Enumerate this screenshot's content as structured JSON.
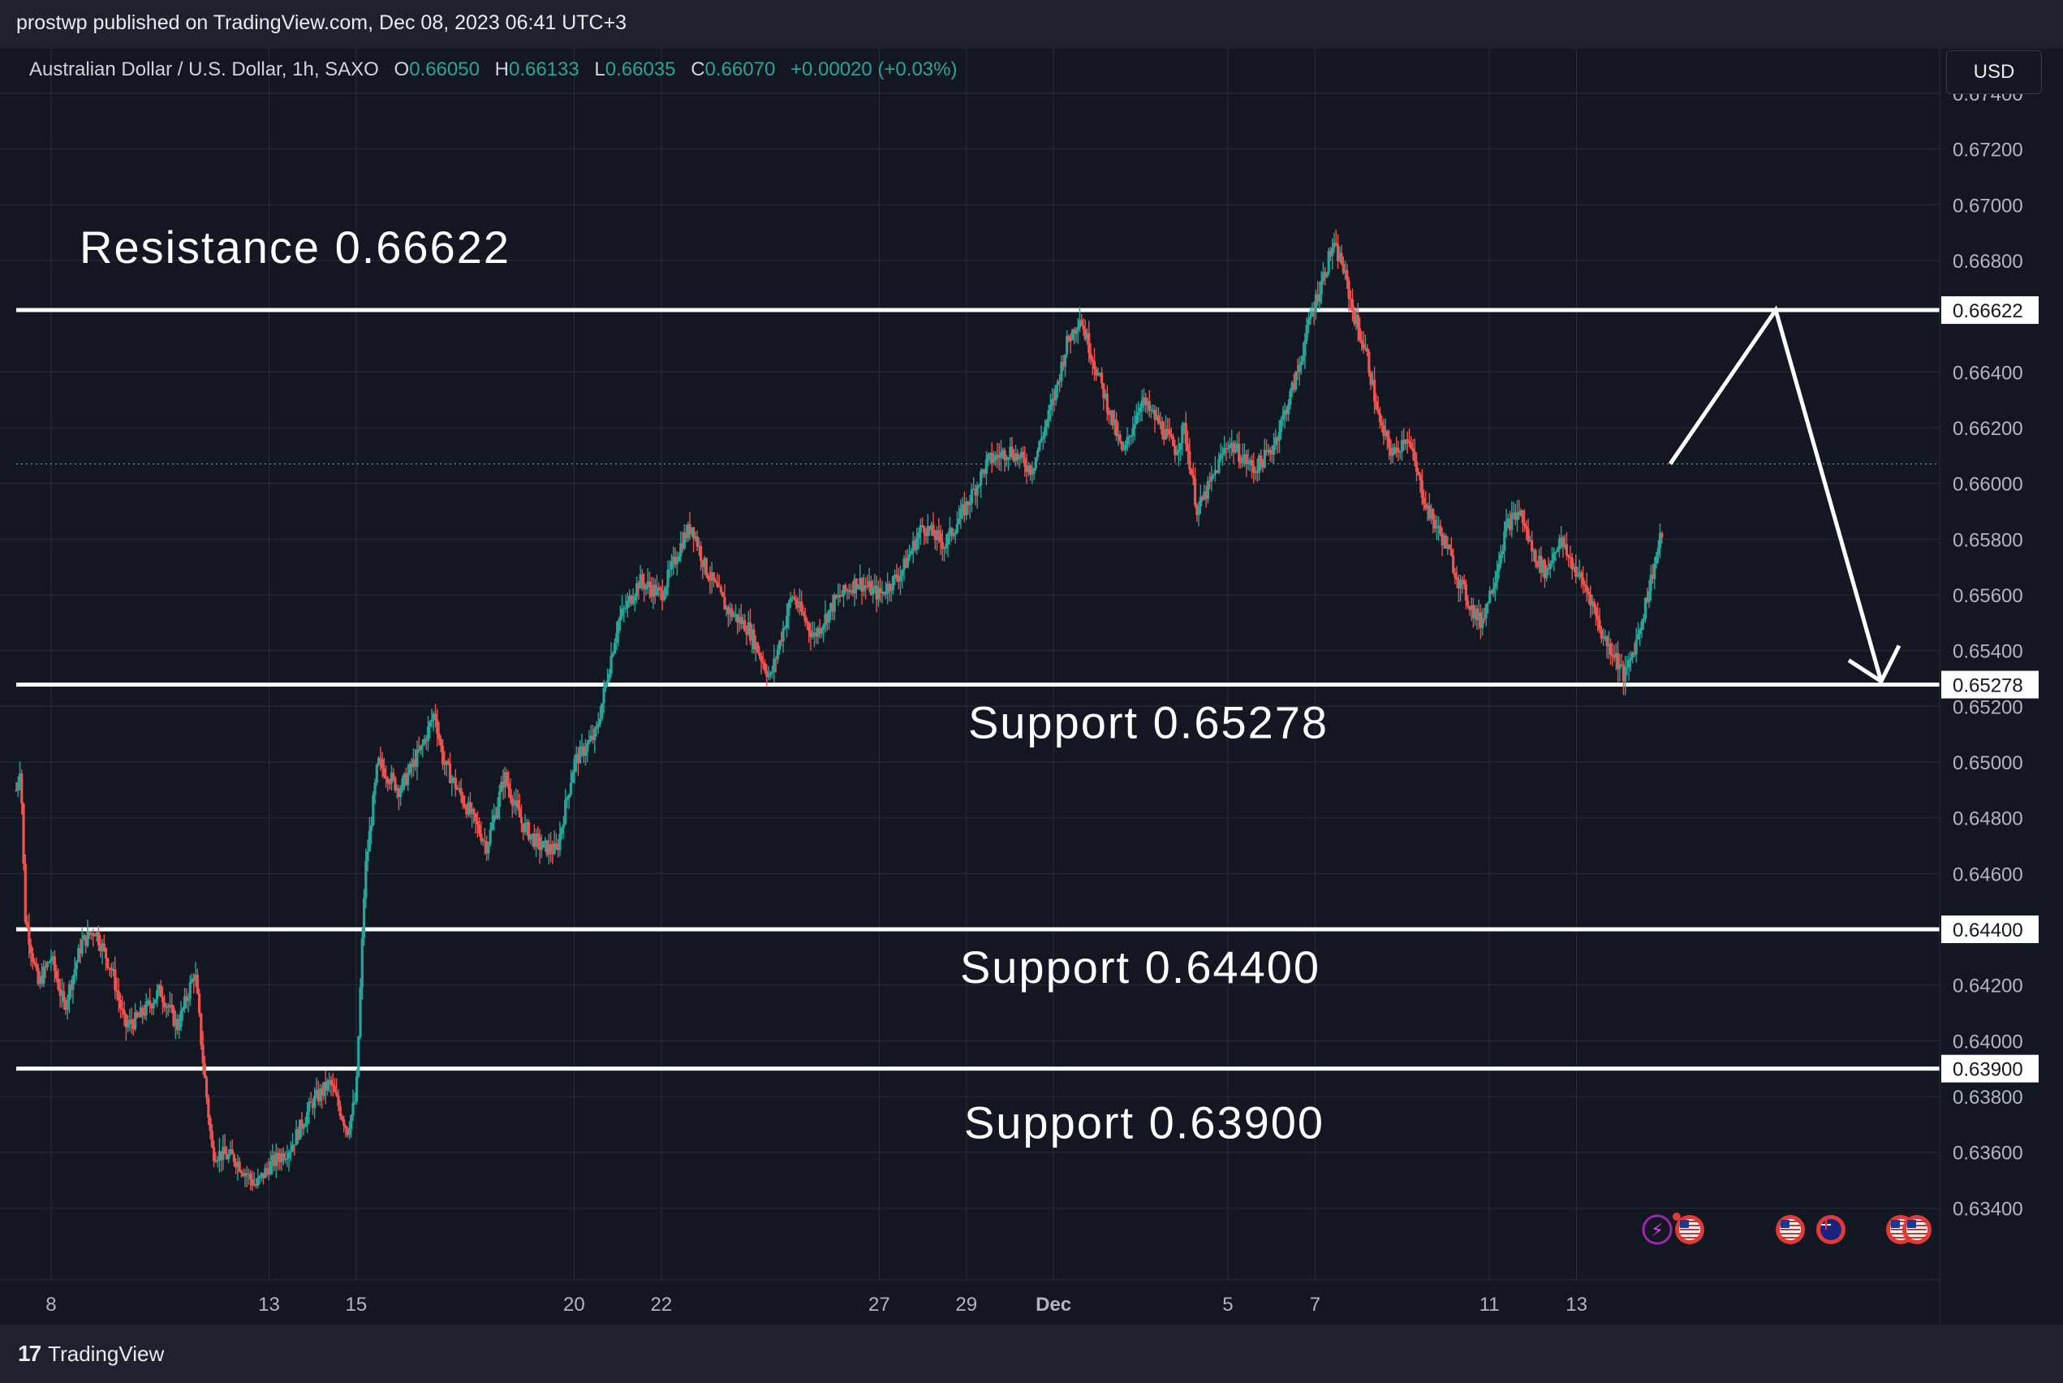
{
  "header": {
    "published": "prostwp published on TradingView.com, Dec 08, 2023 06:41 UTC+3"
  },
  "legend": {
    "symbol": "Australian Dollar / U.S. Dollar, 1h, SAXO",
    "open_label": "O",
    "open": "0.66050",
    "high_label": "H",
    "high": "0.66133",
    "low_label": "L",
    "low": "0.66035",
    "close_label": "C",
    "close": "0.66070",
    "change": "+0.00020 (+0.03%)"
  },
  "currency_button": "USD",
  "footer": {
    "brand": "TradingView",
    "logo": "17"
  },
  "chart_data": {
    "type": "candlestick",
    "symbol": "AUDUSD",
    "interval": "1h",
    "ylim": [
      0.632,
      0.6756
    ],
    "y_ticks": [
      "0.67400",
      "0.67200",
      "0.67000",
      "0.66800",
      "0.66400",
      "0.66200",
      "0.66000",
      "0.65800",
      "0.65600",
      "0.65400",
      "0.65200",
      "0.65000",
      "0.64800",
      "0.64600",
      "0.64200",
      "0.64000",
      "0.63800",
      "0.63600",
      "0.63400"
    ],
    "x_ticks": [
      {
        "label": "8",
        "day": 0
      },
      {
        "label": "13",
        "day": 5
      },
      {
        "label": "15",
        "day": 7
      },
      {
        "label": "20",
        "day": 12
      },
      {
        "label": "22",
        "day": 14
      },
      {
        "label": "27",
        "day": 19
      },
      {
        "label": "29",
        "day": 21
      },
      {
        "label": "Dec",
        "day": 23
      },
      {
        "label": "5",
        "day": 27
      },
      {
        "label": "7",
        "day": 29
      },
      {
        "label": "11",
        "day": 33
      },
      {
        "label": "13",
        "day": 35
      }
    ],
    "x_range_days": [
      -0.8,
      37.0
    ],
    "current_price": 0.6607,
    "price_path": [
      [
        -0.8,
        0.649
      ],
      [
        -0.7,
        0.65
      ],
      [
        -0.6,
        0.6445
      ],
      [
        -0.3,
        0.642
      ],
      [
        0.0,
        0.643
      ],
      [
        0.3,
        0.6412
      ],
      [
        0.7,
        0.6435
      ],
      [
        1.0,
        0.644
      ],
      [
        1.4,
        0.6425
      ],
      [
        1.7,
        0.6405
      ],
      [
        2.0,
        0.6408
      ],
      [
        2.5,
        0.6418
      ],
      [
        2.9,
        0.6405
      ],
      [
        3.3,
        0.6425
      ],
      [
        3.5,
        0.639
      ],
      [
        3.7,
        0.636
      ],
      [
        4.2,
        0.6358
      ],
      [
        4.7,
        0.6348
      ],
      [
        5.0,
        0.6355
      ],
      [
        5.5,
        0.6362
      ],
      [
        6.0,
        0.6378
      ],
      [
        6.4,
        0.6385
      ],
      [
        6.8,
        0.6368
      ],
      [
        7.0,
        0.638
      ],
      [
        7.2,
        0.646
      ],
      [
        7.5,
        0.65
      ],
      [
        8.0,
        0.649
      ],
      [
        8.5,
        0.6505
      ],
      [
        8.8,
        0.6518
      ],
      [
        9.0,
        0.65
      ],
      [
        9.5,
        0.6485
      ],
      [
        10.0,
        0.647
      ],
      [
        10.4,
        0.6495
      ],
      [
        10.8,
        0.6478
      ],
      [
        11.2,
        0.647
      ],
      [
        11.6,
        0.6468
      ],
      [
        12.0,
        0.65
      ],
      [
        12.5,
        0.651
      ],
      [
        13.0,
        0.655
      ],
      [
        13.5,
        0.6565
      ],
      [
        14.0,
        0.656
      ],
      [
        14.5,
        0.658
      ],
      [
        14.7,
        0.6585
      ],
      [
        15.0,
        0.657
      ],
      [
        15.5,
        0.6555
      ],
      [
        16.0,
        0.6548
      ],
      [
        16.5,
        0.653
      ],
      [
        17.0,
        0.656
      ],
      [
        17.5,
        0.6545
      ],
      [
        18.0,
        0.6558
      ],
      [
        18.5,
        0.6565
      ],
      [
        19.0,
        0.656
      ],
      [
        19.5,
        0.6568
      ],
      [
        20.0,
        0.6585
      ],
      [
        20.5,
        0.6578
      ],
      [
        21.0,
        0.6592
      ],
      [
        21.5,
        0.6608
      ],
      [
        22.0,
        0.6612
      ],
      [
        22.5,
        0.6605
      ],
      [
        23.0,
        0.663
      ],
      [
        23.3,
        0.665
      ],
      [
        23.6,
        0.666
      ],
      [
        24.0,
        0.664
      ],
      [
        24.3,
        0.6625
      ],
      [
        24.6,
        0.661
      ],
      [
        25.0,
        0.663
      ],
      [
        25.4,
        0.6622
      ],
      [
        25.8,
        0.6612
      ],
      [
        26.0,
        0.662
      ],
      [
        26.3,
        0.659
      ],
      [
        26.6,
        0.66
      ],
      [
        27.0,
        0.6615
      ],
      [
        27.3,
        0.661
      ],
      [
        27.6,
        0.6605
      ],
      [
        28.0,
        0.6612
      ],
      [
        28.3,
        0.6625
      ],
      [
        28.6,
        0.664
      ],
      [
        28.9,
        0.666
      ],
      [
        29.2,
        0.6675
      ],
      [
        29.4,
        0.6685
      ],
      [
        29.6,
        0.668
      ],
      [
        29.9,
        0.666
      ],
      [
        30.2,
        0.6645
      ],
      [
        30.5,
        0.662
      ],
      [
        30.8,
        0.661
      ],
      [
        31.1,
        0.6618
      ],
      [
        31.4,
        0.66
      ],
      [
        31.6,
        0.659
      ],
      [
        32.0,
        0.6578
      ],
      [
        32.3,
        0.6565
      ],
      [
        32.6,
        0.6555
      ],
      [
        32.8,
        0.655
      ],
      [
        33.1,
        0.6565
      ],
      [
        33.4,
        0.6585
      ],
      [
        33.7,
        0.659
      ],
      [
        34.0,
        0.6575
      ],
      [
        34.3,
        0.6568
      ],
      [
        34.6,
        0.658
      ],
      [
        35.0,
        0.6568
      ],
      [
        35.3,
        0.656
      ],
      [
        35.6,
        0.6545
      ],
      [
        35.9,
        0.6538
      ],
      [
        36.1,
        0.653
      ],
      [
        36.4,
        0.6545
      ],
      [
        36.7,
        0.6565
      ],
      [
        37.0,
        0.6585
      ]
    ],
    "horizontal_levels": [
      {
        "value": 0.66622,
        "label": "0.66622"
      },
      {
        "value": 0.65278,
        "label": "0.65278"
      },
      {
        "value": 0.644,
        "label": "0.64400"
      },
      {
        "value": 0.639,
        "label": "0.63900"
      }
    ],
    "annotations": [
      {
        "text": "Resistance 0.66622",
        "level": 0.66622
      },
      {
        "text": "Support 0.65278",
        "level": 0.65278
      },
      {
        "text": "Support 0.64400",
        "level": 0.644
      },
      {
        "text": "Support 0.63900",
        "level": 0.639
      }
    ],
    "projection_path": [
      [
        0.6607,
        "current"
      ],
      [
        0.66622,
        "peak"
      ],
      [
        0.65278,
        "target"
      ]
    ],
    "colors": {
      "up": "#26a69a",
      "down": "#ef5350",
      "background": "#131722",
      "grid": "#2a2e39",
      "level_line": "#ffffff",
      "axis_text": "#b2b5be"
    },
    "event_icons": [
      "lightning-icon",
      "us-flag-icon",
      "us-flag-icon",
      "au-flag-icon",
      "us-flag-icon",
      "us-flag-icon",
      "us-flag-icon"
    ]
  }
}
